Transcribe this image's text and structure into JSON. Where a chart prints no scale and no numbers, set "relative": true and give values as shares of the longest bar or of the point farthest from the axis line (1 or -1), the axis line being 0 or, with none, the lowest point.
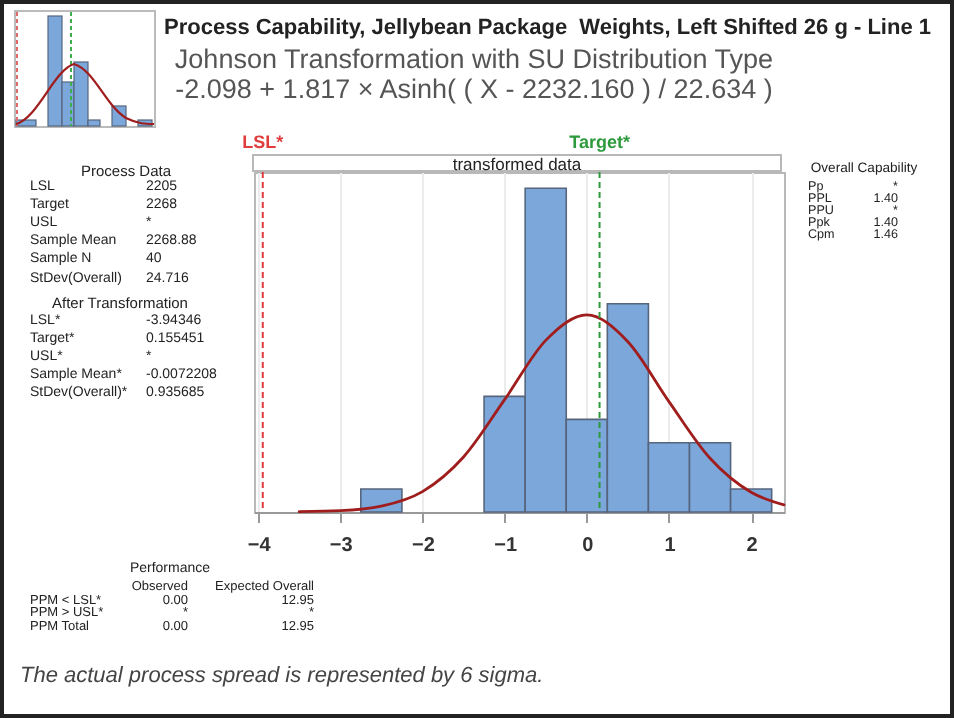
{
  "chart_data": [
    {
      "type": "histogram",
      "title": "Process Capability, Jellybean Package  Weights, Left Shifted 26 g - Line 1",
      "subtitle": "Johnson Transformation with SU Distribution Type\n-2.098 + 1.817 × Asinh( ( X - 2232.160 ) / 22.634 )",
      "relative": true,
      "bins": [
        -2.75,
        -2.25,
        -1.75,
        -1.25,
        -0.75,
        -0.25,
        0.25,
        0.75,
        1.25,
        1.75,
        2.25
      ],
      "values": [
        0.071,
        0,
        0,
        0.357,
        1,
        0.286,
        0.643,
        0.214,
        0.214,
        0.071
      ],
      "color": "#7ba7da",
      "series": [
        {
          "type": "line",
          "color": "#a01d1d",
          "x": [
            -3.5,
            -3,
            -2.5,
            -2,
            -1.5,
            -1,
            -0.5,
            0,
            0.5,
            1,
            1.5,
            2,
            2.4
          ],
          "values": [
            0.001,
            0.004,
            0.018,
            0.063,
            0.17,
            0.347,
            0.53,
            0.609,
            0.526,
            0.341,
            0.166,
            0.061,
            0.022
          ]
        }
      ],
      "xlim": [
        -4.05,
        2.4
      ],
      "xticks": [
        -4,
        -3,
        -2,
        -1,
        0,
        1,
        2
      ],
      "grid": "x",
      "ref_lines": [
        {
          "axis": "x",
          "value": -3.94346,
          "label": "LSL*",
          "color": "#e03c3c",
          "line_style": "dashed"
        },
        {
          "axis": "x",
          "value": 0.155451,
          "label": "Target*",
          "color": "#2f9a3c",
          "line_style": "dashed"
        }
      ],
      "annotations": [
        "transformed data",
        "The actual process spread is represented by 6 sigma."
      ]
    },
    {
      "type": "other",
      "title": "Process Data",
      "annotations": [
        "LSL",
        "2205",
        "Target",
        "2268",
        "USL",
        "*",
        "Sample Mean",
        "2268.88",
        "Sample N",
        "40",
        "StDev(Overall)",
        "24.716"
      ]
    },
    {
      "type": "other",
      "title": "After Transformation",
      "annotations": [
        "LSL*",
        "-3.94346",
        "Target*",
        "0.155451",
        "USL*",
        "*",
        "Sample Mean*",
        "-0.0072208",
        "StDev(Overall)*",
        "0.935685"
      ]
    },
    {
      "type": "other",
      "title": "Overall Capability",
      "annotations": [
        "Pp",
        "*",
        "PPL",
        "1.40",
        "PPU",
        "*",
        "Ppk",
        "1.40",
        "Cpm",
        "1.46"
      ]
    },
    {
      "type": "other",
      "title": "Performance",
      "annotations": [
        "Observed",
        "Expected Overall",
        "PPM < LSL*",
        "0.00",
        "12.95",
        "PPM > USL*",
        "*",
        "*",
        "PPM Total",
        "0.00",
        "12.95"
      ]
    }
  ]
}
